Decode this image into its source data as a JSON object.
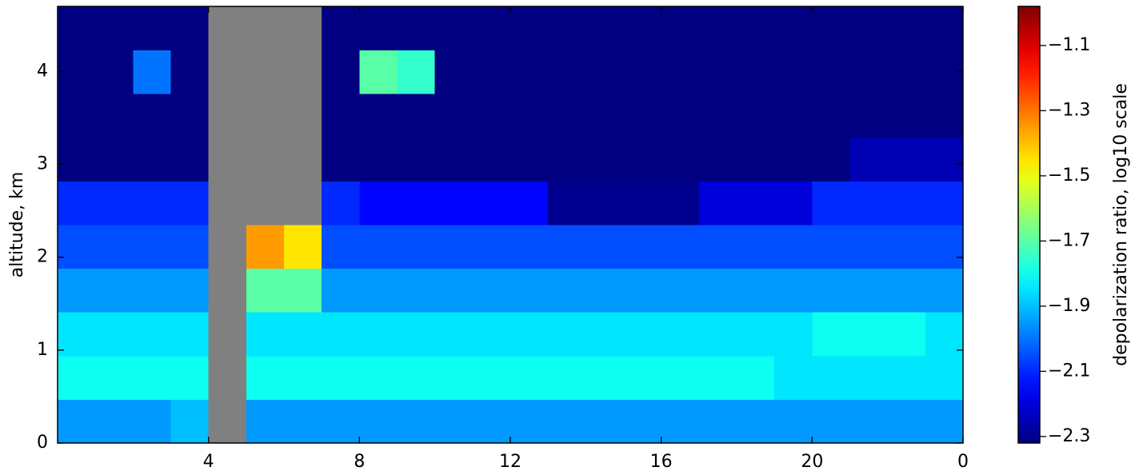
{
  "chart_data": {
    "type": "heatmap",
    "y_label": "altitude, km",
    "colorbar_label": "depolarization ratio, log10 scale",
    "colormap": "jet",
    "missing_color": "#808080",
    "x": [
      0,
      1,
      2,
      3,
      4,
      5,
      6,
      7,
      8,
      9,
      10,
      11,
      12,
      13,
      14,
      15,
      16,
      17,
      18,
      19,
      20,
      21,
      22,
      23,
      24
    ],
    "y": [
      0,
      0.47,
      0.94,
      1.41,
      1.88,
      2.35,
      2.82,
      3.29,
      3.76,
      4.23,
      4.7
    ],
    "z": [
      [
        -1.95,
        -1.95,
        -1.95,
        -1.9,
        null,
        -1.95,
        -1.95,
        -1.95,
        -1.95,
        -1.95,
        -1.95,
        -1.95,
        -1.95,
        -1.95,
        -1.95,
        -1.95,
        -1.95,
        -1.95,
        -1.95,
        -1.95,
        -1.95,
        -1.95,
        -1.95,
        -1.95
      ],
      [
        -1.8,
        -1.8,
        -1.8,
        -1.8,
        null,
        -1.8,
        -1.8,
        -1.8,
        -1.8,
        -1.8,
        -1.8,
        -1.8,
        -1.8,
        -1.8,
        -1.8,
        -1.8,
        -1.8,
        -1.8,
        -1.8,
        -1.85,
        -1.85,
        -1.85,
        -1.85,
        -1.85
      ],
      [
        -1.85,
        -1.85,
        -1.85,
        -1.85,
        null,
        -1.85,
        -1.85,
        -1.85,
        -1.85,
        -1.85,
        -1.85,
        -1.85,
        -1.85,
        -1.85,
        -1.85,
        -1.85,
        -1.85,
        -1.85,
        -1.85,
        -1.85,
        -1.8,
        -1.8,
        -1.8,
        -1.85
      ],
      [
        -1.95,
        -1.95,
        -1.95,
        -1.95,
        null,
        -1.7,
        -1.7,
        -1.95,
        -1.95,
        -1.95,
        -1.95,
        -1.95,
        -1.95,
        -1.95,
        -1.95,
        -1.95,
        -1.95,
        -1.95,
        -1.95,
        -1.95,
        -1.95,
        -1.95,
        -1.95,
        -1.95
      ],
      [
        -2.05,
        -2.05,
        -2.05,
        -2.05,
        null,
        -1.35,
        -1.45,
        -2.05,
        -2.05,
        -2.05,
        -2.05,
        -2.05,
        -2.05,
        -2.05,
        -2.05,
        -2.05,
        -2.05,
        -2.05,
        -2.05,
        -2.05,
        -2.05,
        -2.05,
        -2.05,
        -2.05
      ],
      [
        -2.1,
        -2.1,
        -2.1,
        -2.1,
        null,
        null,
        null,
        -2.1,
        -2.15,
        -2.15,
        -2.15,
        -2.15,
        -2.15,
        -2.3,
        -2.3,
        -2.3,
        -2.3,
        -2.2,
        -2.2,
        -2.2,
        -2.1,
        -2.1,
        -2.1,
        -2.1
      ],
      [
        -2.32,
        -2.32,
        -2.32,
        -2.32,
        null,
        null,
        null,
        -2.32,
        -2.32,
        -2.32,
        -2.32,
        -2.32,
        -2.32,
        -2.32,
        -2.32,
        -2.32,
        -2.32,
        -2.32,
        -2.32,
        -2.32,
        -2.32,
        -2.25,
        -2.25,
        -2.25
      ],
      [
        -2.32,
        -2.32,
        -2.32,
        -2.32,
        null,
        null,
        null,
        -2.32,
        -2.32,
        -2.32,
        -2.32,
        -2.32,
        -2.32,
        -2.32,
        -2.32,
        -2.32,
        -2.32,
        -2.32,
        -2.32,
        -2.32,
        -2.32,
        -2.32,
        -2.32,
        -2.32
      ],
      [
        -2.32,
        -2.32,
        -2.0,
        -2.32,
        null,
        null,
        null,
        -2.32,
        -1.7,
        -1.75,
        -2.32,
        -2.32,
        -2.32,
        -2.32,
        -2.32,
        -2.32,
        -2.32,
        -2.32,
        -2.32,
        -2.32,
        -2.32,
        -2.32,
        -2.32,
        -2.32
      ],
      [
        -2.32,
        -2.32,
        -2.32,
        -2.32,
        null,
        null,
        null,
        -2.32,
        -2.32,
        -2.32,
        -2.32,
        -2.32,
        -2.32,
        -2.32,
        -2.32,
        -2.32,
        -2.32,
        -2.32,
        -2.32,
        -2.32,
        -2.32,
        -2.32,
        -2.32,
        -2.32
      ]
    ],
    "xlim": [
      0,
      24
    ],
    "xticks": [
      4,
      8,
      12,
      16,
      20,
      {
        "value": 24,
        "label": "0"
      }
    ],
    "ylim": [
      0,
      4.7
    ],
    "yticks": [
      0,
      1,
      2,
      3,
      4
    ],
    "clim": [
      -2.32,
      -0.98
    ],
    "cticks": [
      {
        "value": -2.3,
        "label": "−2.3"
      },
      {
        "value": -2.1,
        "label": "−2.1"
      },
      {
        "value": -1.9,
        "label": "−1.9"
      },
      {
        "value": -1.7,
        "label": "−1.7"
      },
      {
        "value": -1.5,
        "label": "−1.5"
      },
      {
        "value": -1.3,
        "label": "−1.3"
      },
      {
        "value": -1.1,
        "label": "−1.1"
      }
    ]
  }
}
